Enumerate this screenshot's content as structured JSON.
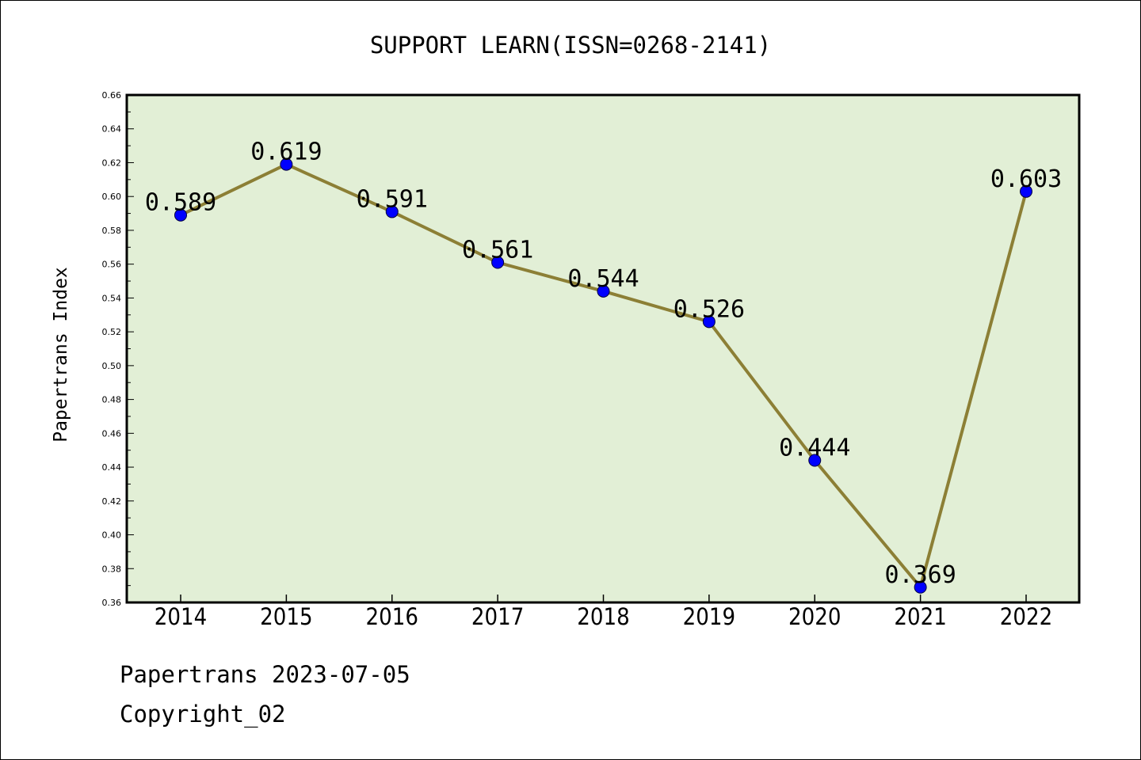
{
  "chart_data": {
    "type": "line",
    "title": "SUPPORT LEARN(ISSN=0268-2141)",
    "xlabel": "",
    "ylabel": "Papertrans Index",
    "categories": [
      "2014",
      "2015",
      "2016",
      "2017",
      "2018",
      "2019",
      "2020",
      "2021",
      "2022"
    ],
    "values": [
      0.589,
      0.619,
      0.591,
      0.561,
      0.544,
      0.526,
      0.444,
      0.369,
      0.603
    ],
    "data_labels": [
      "0.589",
      "0.619",
      "0.591",
      "0.561",
      "0.544",
      "0.526",
      "0.444",
      "0.369",
      "0.603"
    ],
    "ylim": [
      0.36,
      0.66
    ],
    "yticks": [
      "0.36",
      "0.38",
      "0.40",
      "0.42",
      "0.44",
      "0.46",
      "0.48",
      "0.50",
      "0.52",
      "0.54",
      "0.56",
      "0.58",
      "0.60",
      "0.62",
      "0.64",
      "0.66"
    ],
    "grid": false,
    "colors": {
      "plot_bg": "#e2efd6",
      "line": "#8c7f35",
      "marker": "#0000ff"
    }
  },
  "footer": {
    "line1": "Papertrans 2023-07-05",
    "line2": "Copyright_02"
  }
}
